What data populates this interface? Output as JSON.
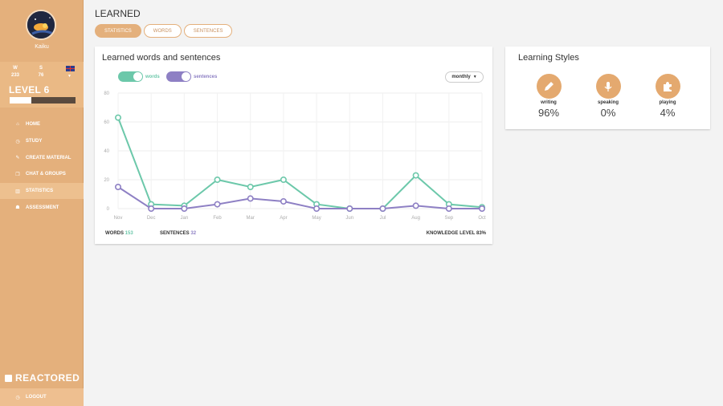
{
  "app": {
    "brand": "REACTORED"
  },
  "user": {
    "name": "Kaiku",
    "stats": [
      {
        "label": "W",
        "value": "233"
      },
      {
        "label": "S",
        "value": "76"
      },
      {
        "label": "",
        "value": ""
      }
    ],
    "level": "LEVEL 6",
    "level_progress": 0.33
  },
  "nav": [
    {
      "icon": "home-icon",
      "glyph": "⌂",
      "label": "HOME",
      "active": false
    },
    {
      "icon": "clock-icon",
      "glyph": "◷",
      "label": "STUDY",
      "active": false
    },
    {
      "icon": "pencil-icon",
      "glyph": "✎",
      "label": "CREATE MATERIAL",
      "active": false
    },
    {
      "icon": "chat-icon",
      "glyph": "❐",
      "label": "CHAT & GROUPS",
      "active": false
    },
    {
      "icon": "bar-chart-icon",
      "glyph": "▥",
      "label": "STATISTICS",
      "active": true
    },
    {
      "icon": "people-icon",
      "glyph": "☗",
      "label": "ASSESSMENT",
      "active": false
    }
  ],
  "logout": {
    "label": "LOGOUT",
    "glyph": "◷"
  },
  "page": {
    "title": "LEARNED"
  },
  "tabs": [
    {
      "label": "STATISTICS",
      "active": true
    },
    {
      "label": "WORDS",
      "active": false
    },
    {
      "label": "SENTENCES",
      "active": false
    }
  ],
  "chart_card": {
    "title": "Learned words and sentences",
    "toggles": [
      {
        "label": "words",
        "color": "#6cc8aa"
      },
      {
        "label": "sentences",
        "color": "#8e80c4"
      }
    ],
    "dropdown": "monthly",
    "footer": {
      "words_label": "WORDS",
      "words_value": "153",
      "sentences_label": "SENTENCES",
      "sentences_value": "32",
      "knowledge_label": "KNOWLEDGE LEVEL",
      "knowledge_value": "83%"
    }
  },
  "chart_data": {
    "type": "line",
    "x": [
      "Nov",
      "Dec",
      "Jan",
      "Feb",
      "Mar",
      "Apr",
      "May",
      "Jun",
      "Jul",
      "Aug",
      "Sep",
      "Oct"
    ],
    "series": [
      {
        "name": "words",
        "color": "#6cc8aa",
        "values": [
          63,
          3,
          2,
          20,
          15,
          20,
          3,
          0,
          0,
          23,
          3,
          1
        ]
      },
      {
        "name": "sentences",
        "color": "#8e80c4",
        "values": [
          15,
          0,
          0,
          3,
          7,
          5,
          0,
          0,
          0,
          2,
          0,
          0
        ]
      }
    ],
    "yticks": [
      "0",
      "20",
      "40",
      "60",
      "80"
    ],
    "ylim": [
      0,
      80
    ],
    "grid": true
  },
  "learning_styles": {
    "title": "Learning Styles",
    "items": [
      {
        "icon": "pencil-icon",
        "glyph": "✎",
        "label": "writing",
        "value": "96%"
      },
      {
        "icon": "microphone-icon",
        "glyph": "🎙",
        "label": "speaking",
        "value": "0%"
      },
      {
        "icon": "puzzle-icon",
        "glyph": "✚",
        "label": "playing",
        "value": "4%"
      }
    ]
  }
}
